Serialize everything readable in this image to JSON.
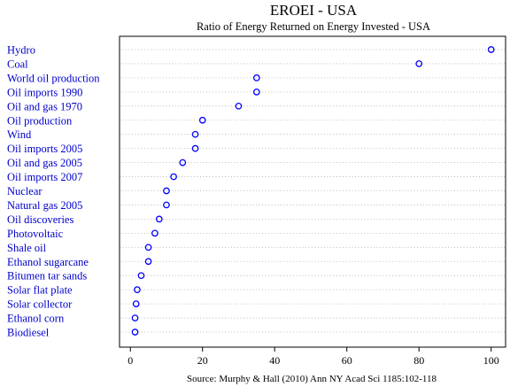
{
  "chart_data": {
    "type": "scatter",
    "title": "EROEI - USA",
    "subtitle": "Ratio of Energy Returned on Energy Invested - USA",
    "caption": "Source: Murphy & Hall (2010) Ann NY Acad Sci 1185:102-118",
    "xlabel": "",
    "ylabel": "",
    "xlim": [
      -3,
      104
    ],
    "xticks": [
      0,
      20,
      40,
      60,
      80,
      100
    ],
    "grid": "horizontal-dotted",
    "legend": "none",
    "marker_color": "#0000ff",
    "label_color": "#0000cc",
    "points": [
      {
        "label": "Hydro",
        "value": 100
      },
      {
        "label": "Coal",
        "value": 80
      },
      {
        "label": "World oil production",
        "value": 35
      },
      {
        "label": "Oil imports 1990",
        "value": 35
      },
      {
        "label": "Oil and gas 1970",
        "value": 30
      },
      {
        "label": "Oil production",
        "value": 20
      },
      {
        "label": "Wind",
        "value": 18
      },
      {
        "label": "Oil imports 2005",
        "value": 18
      },
      {
        "label": "Oil and gas 2005",
        "value": 14.5
      },
      {
        "label": "Oil imports 2007",
        "value": 12
      },
      {
        "label": "Nuclear",
        "value": 10
      },
      {
        "label": "Natural gas 2005",
        "value": 10
      },
      {
        "label": "Oil discoveries",
        "value": 8
      },
      {
        "label": "Photovoltaic",
        "value": 6.8
      },
      {
        "label": "Shale oil",
        "value": 5
      },
      {
        "label": "Ethanol sugarcane",
        "value": 5
      },
      {
        "label": "Bitumen tar sands",
        "value": 3
      },
      {
        "label": "Solar flat plate",
        "value": 1.9
      },
      {
        "label": "Solar collector",
        "value": 1.6
      },
      {
        "label": "Ethanol corn",
        "value": 1.3
      },
      {
        "label": "Biodiesel",
        "value": 1.3
      }
    ]
  }
}
